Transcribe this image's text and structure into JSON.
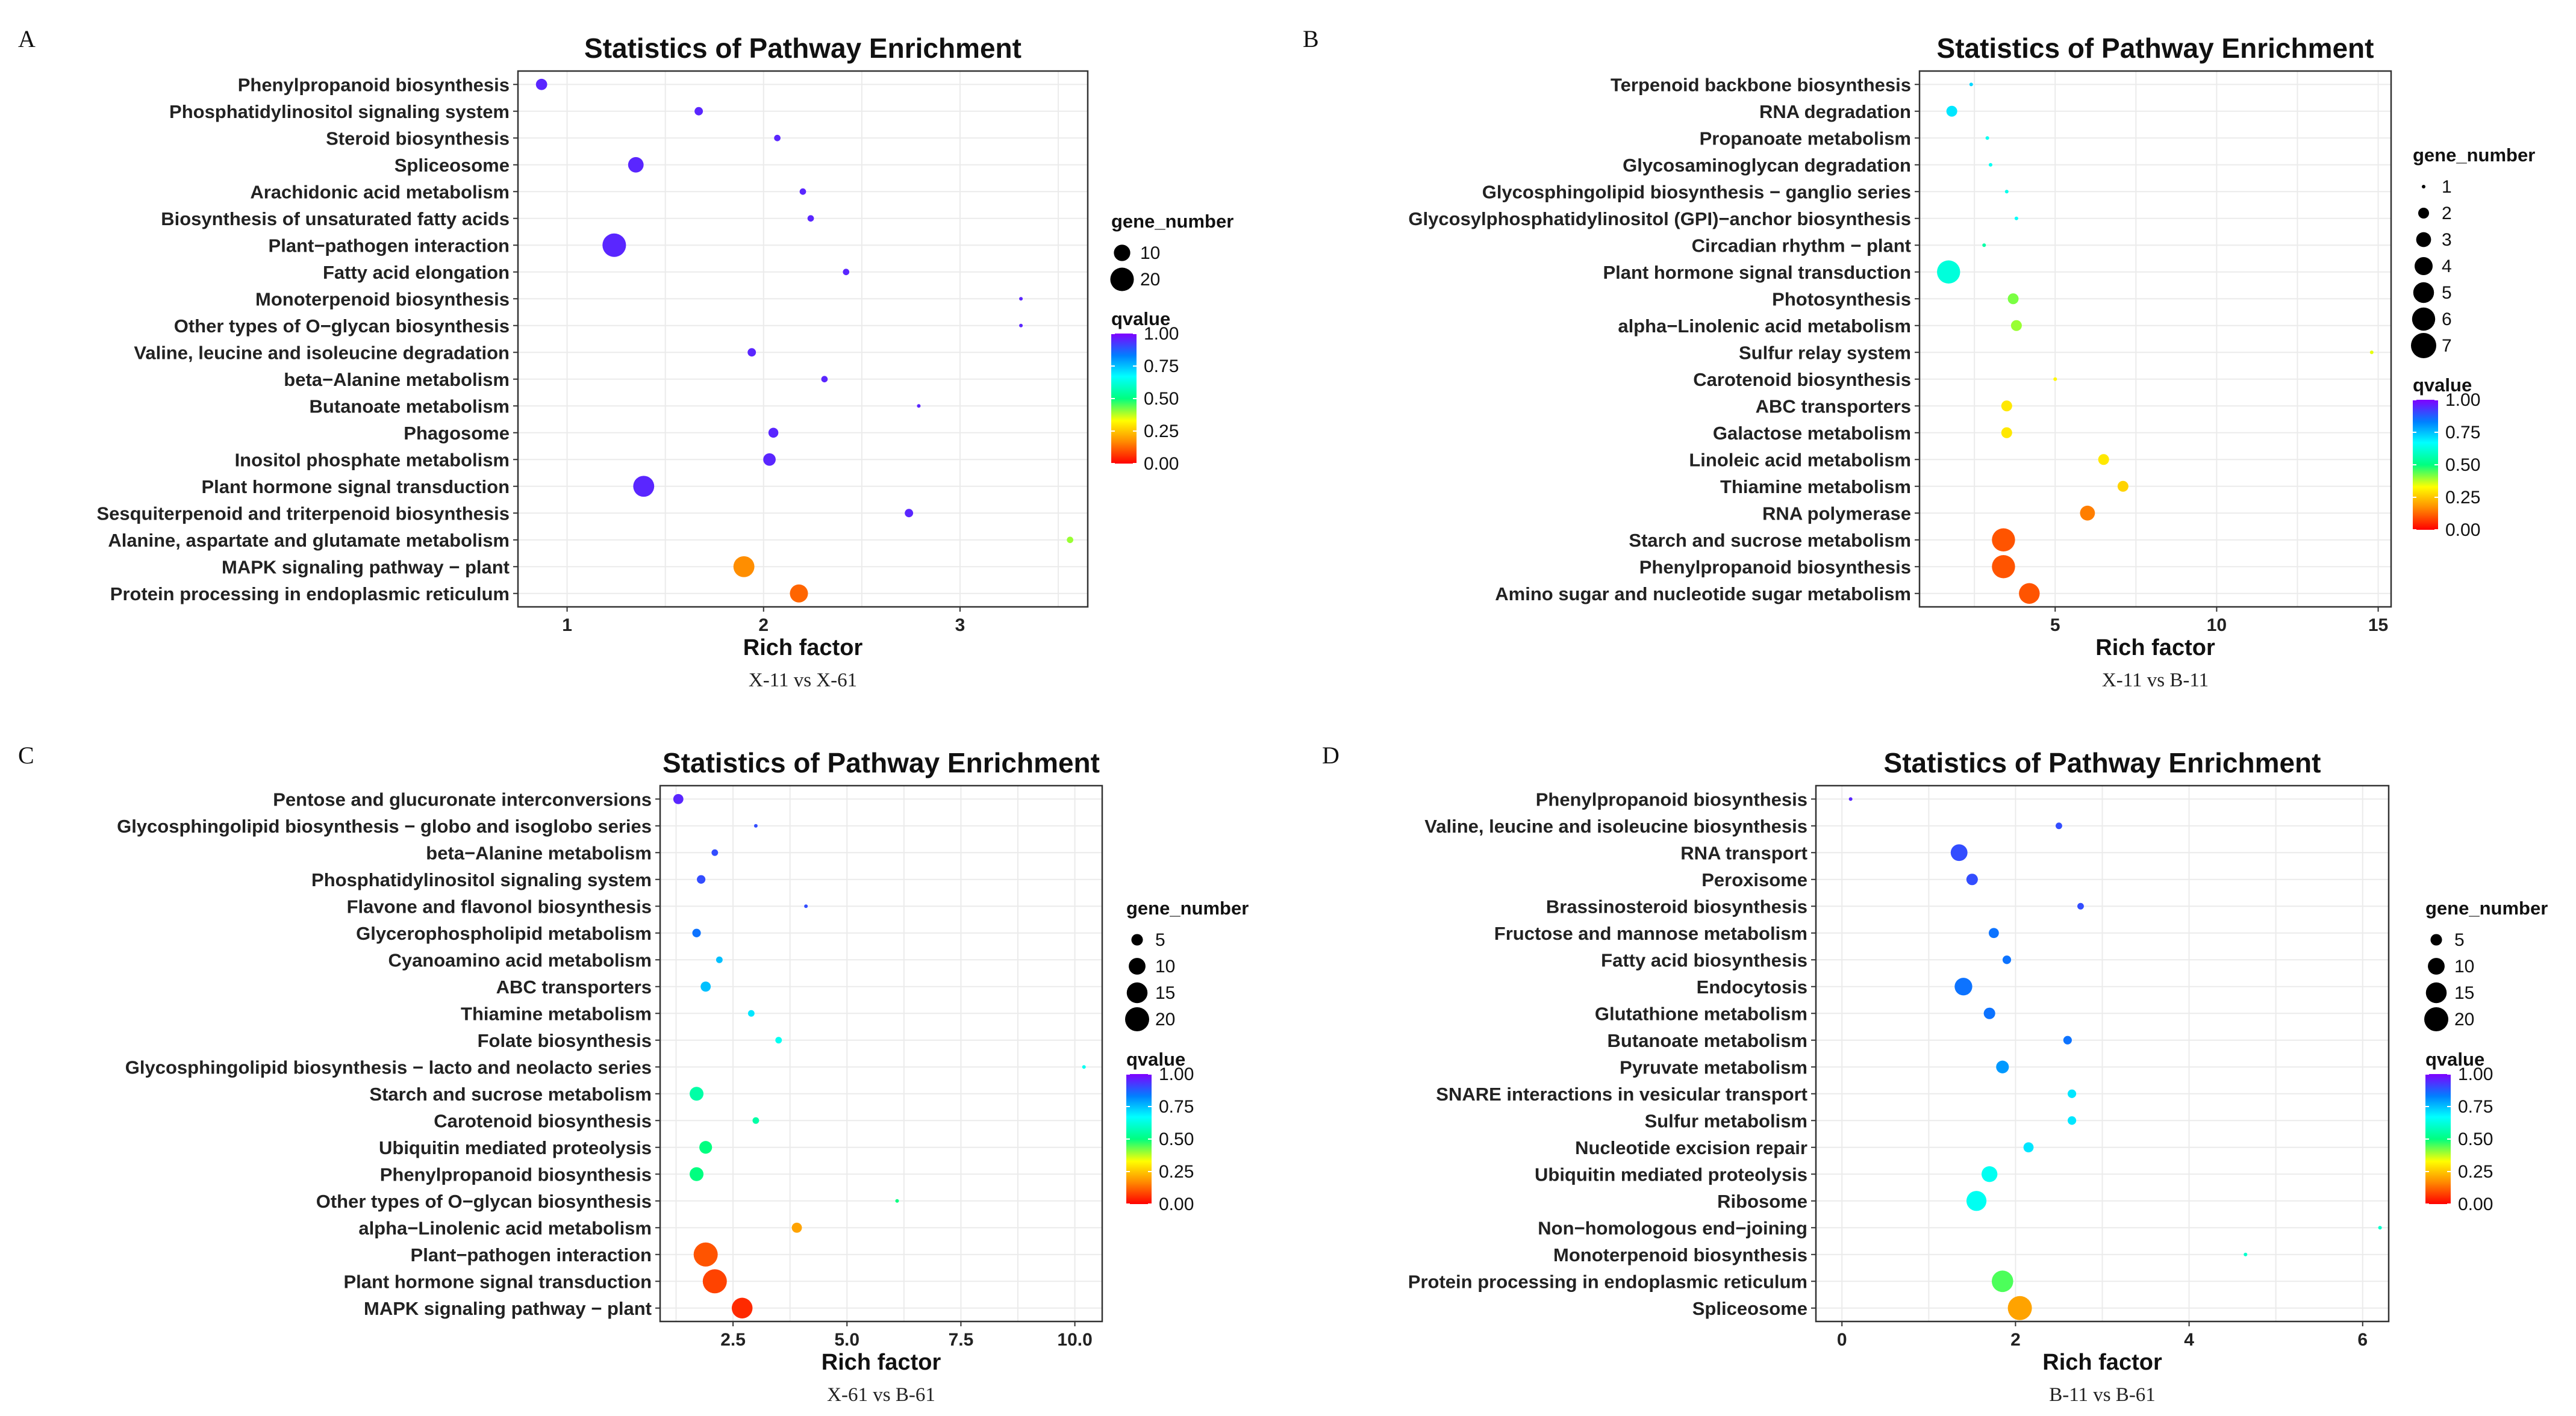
{
  "colors": {
    "gradient": [
      "#ff0000",
      "#ff8c00",
      "#ffff00",
      "#00ff80",
      "#00ffff",
      "#0080ff",
      "#8000ff"
    ],
    "grid": "#ebebeb",
    "border": "#333333"
  },
  "chart_data": [
    {
      "panel": "A",
      "type": "scatter",
      "title": "Statistics of Pathway Enrichment",
      "xlabel": "Rich factor",
      "caption": "X-11 vs X-61",
      "xlim": [
        0.75,
        3.65
      ],
      "xticks": [
        1,
        2,
        3
      ],
      "xtick_labels": [
        "1",
        "2",
        "3"
      ],
      "size_legend_title": "gene_number",
      "size_range": [
        1,
        23
      ],
      "size_breaks": [
        10,
        20
      ],
      "color_legend_title": "qvalue",
      "color_breaks": [
        "1.00",
        "0.75",
        "0.50",
        "0.25",
        "0.00"
      ],
      "categories": [
        "Phenylpropanoid biosynthesis",
        "Phosphatidylinositol signaling system",
        "Steroid biosynthesis",
        "Spliceosome",
        "Arachidonic acid metabolism",
        "Biosynthesis of unsaturated fatty acids",
        "Plant−pathogen interaction",
        "Fatty acid elongation",
        "Monoterpenoid biosynthesis",
        "Other types of O−glycan biosynthesis",
        "Valine, leucine and isoleucine degradation",
        "beta−Alanine metabolism",
        "Butanoate metabolism",
        "Phagosome",
        "Inositol phosphate metabolism",
        "Plant hormone signal transduction",
        "Sesquiterpenoid and triterpenoid biosynthesis",
        "Alanine, aspartate and glutamate metabolism",
        "MAPK signaling pathway − plant",
        "Protein processing in endoplasmic reticulum"
      ],
      "rich_factor": [
        0.87,
        1.67,
        2.07,
        1.35,
        2.2,
        2.24,
        1.24,
        2.42,
        3.31,
        3.31,
        1.94,
        2.31,
        2.79,
        2.05,
        2.03,
        1.39,
        2.74,
        3.56,
        1.9,
        2.18
      ],
      "gene_number": [
        5,
        3,
        2,
        9,
        2,
        2,
        20,
        2,
        1,
        1,
        3,
        2,
        1,
        4,
        6,
        16,
        3,
        2,
        16,
        12
      ],
      "qvalue": [
        0.95,
        0.95,
        0.95,
        0.95,
        0.95,
        0.95,
        0.95,
        0.95,
        0.95,
        0.95,
        0.95,
        0.95,
        0.95,
        0.95,
        0.95,
        0.95,
        0.95,
        0.4,
        0.17,
        0.12
      ]
    },
    {
      "panel": "B",
      "type": "scatter",
      "title": "Statistics of Pathway Enrichment",
      "xlabel": "Rich factor",
      "caption": "X-11 vs B-11",
      "xlim": [
        0.8,
        15.4
      ],
      "xticks": [
        5,
        10,
        15
      ],
      "xtick_labels": [
        "5",
        "10",
        "15"
      ],
      "size_legend_title": "gene_number",
      "size_range": [
        1,
        7
      ],
      "size_breaks": [
        1,
        2,
        3,
        4,
        5,
        6,
        7
      ],
      "color_legend_title": "qvalue",
      "color_breaks": [
        "1.00",
        "0.75",
        "0.50",
        "0.25",
        "0.00"
      ],
      "categories": [
        "Terpenoid backbone biosynthesis",
        "RNA degradation",
        "Propanoate metabolism",
        "Glycosaminoglycan degradation",
        "Glycosphingolipid biosynthesis − ganglio series",
        "Glycosylphosphatidylinositol (GPI)−anchor biosynthesis",
        "Circadian rhythm − plant",
        "Plant hormone signal transduction",
        "Photosynthesis",
        "alpha−Linolenic acid metabolism",
        "Sulfur relay system",
        "Carotenoid biosynthesis",
        "ABC transporters",
        "Galactose metabolism",
        "Linoleic acid metabolism",
        "Thiamine metabolism",
        "RNA polymerase",
        "Starch and sucrose metabolism",
        "Phenylpropanoid biosynthesis",
        "Amino sugar and nucleotide sugar metabolism"
      ],
      "rich_factor": [
        2.4,
        1.8,
        2.9,
        3.0,
        3.5,
        3.8,
        2.8,
        1.7,
        3.7,
        3.8,
        14.8,
        5.0,
        3.5,
        3.5,
        6.5,
        7.1,
        6.0,
        3.4,
        3.4,
        4.2
      ],
      "gene_number": [
        1,
        2,
        1,
        1,
        1,
        1,
        1,
        6,
        2,
        2,
        1,
        1,
        2,
        2,
        2,
        2,
        3,
        6,
        6,
        5
      ],
      "qvalue": [
        0.72,
        0.7,
        0.65,
        0.65,
        0.64,
        0.66,
        0.55,
        0.62,
        0.42,
        0.4,
        0.35,
        0.32,
        0.3,
        0.3,
        0.3,
        0.27,
        0.15,
        0.1,
        0.1,
        0.1
      ]
    },
    {
      "panel": "C",
      "type": "scatter",
      "title": "Statistics of Pathway Enrichment",
      "xlabel": "Rich factor",
      "caption": "X-61 vs B-61",
      "xlim": [
        0.9,
        10.6
      ],
      "xticks": [
        2.5,
        5.0,
        7.5,
        10.0
      ],
      "xtick_labels": [
        "2.5",
        "5.0",
        "7.5",
        "10.0"
      ],
      "size_legend_title": "gene_number",
      "size_range": [
        1,
        22
      ],
      "size_breaks": [
        5,
        10,
        15,
        20
      ],
      "color_legend_title": "qvalue",
      "color_breaks": [
        "1.00",
        "0.75",
        "0.50",
        "0.25",
        "0.00"
      ],
      "categories": [
        "Pentose and glucuronate interconversions",
        "Glycosphingolipid biosynthesis − globo and isoglobo series",
        "beta−Alanine metabolism",
        "Phosphatidylinositol signaling system",
        "Flavone and flavonol biosynthesis",
        "Glycerophospholipid metabolism",
        "Cyanoamino acid metabolism",
        "ABC transporters",
        "Thiamine metabolism",
        "Folate biosynthesis",
        "Glycosphingolipid biosynthesis − lacto and neolacto series",
        "Starch and sucrose metabolism",
        "Carotenoid biosynthesis",
        "Ubiquitin mediated proteolysis",
        "Phenylpropanoid biosynthesis",
        "Other types of O−glycan biosynthesis",
        "alpha−Linolenic acid metabolism",
        "Plant−pathogen interaction",
        "Plant hormone signal transduction",
        "MAPK signaling pathway − plant"
      ],
      "rich_factor": [
        1.3,
        3.0,
        2.1,
        1.8,
        4.1,
        1.7,
        2.2,
        1.9,
        2.9,
        3.5,
        10.2,
        1.7,
        3.0,
        1.9,
        1.7,
        6.1,
        3.9,
        1.9,
        2.1,
        2.7
      ],
      "gene_number": [
        4,
        1,
        2,
        3,
        1,
        3,
        2,
        4,
        2,
        2,
        1,
        7,
        2,
        6,
        7,
        1,
        4,
        20,
        20,
        15
      ],
      "qvalue": [
        0.95,
        0.9,
        0.9,
        0.9,
        0.9,
        0.85,
        0.75,
        0.75,
        0.7,
        0.65,
        0.65,
        0.55,
        0.55,
        0.5,
        0.5,
        0.5,
        0.2,
        0.1,
        0.08,
        0.05
      ]
    },
    {
      "panel": "D",
      "type": "scatter",
      "title": "Statistics of Pathway Enrichment",
      "xlabel": "Rich factor",
      "caption": "B-11 vs B-61",
      "xlim": [
        -0.3,
        6.3
      ],
      "xticks": [
        0,
        2,
        4,
        6
      ],
      "xtick_labels": [
        "0",
        "2",
        "4",
        "6"
      ],
      "size_legend_title": "gene_number",
      "size_range": [
        1,
        22
      ],
      "size_breaks": [
        5,
        10,
        15,
        20
      ],
      "color_legend_title": "qvalue",
      "color_breaks": [
        "1.00",
        "0.75",
        "0.50",
        "0.25",
        "0.00"
      ],
      "categories": [
        "Phenylpropanoid biosynthesis",
        "Valine, leucine and isoleucine biosynthesis",
        "RNA transport",
        "Peroxisome",
        "Brassinosteroid biosynthesis",
        "Fructose and mannose metabolism",
        "Fatty acid biosynthesis",
        "Endocytosis",
        "Glutathione metabolism",
        "Butanoate metabolism",
        "Pyruvate metabolism",
        "SNARE interactions in vesicular transport",
        "Sulfur metabolism",
        "Nucleotide excision repair",
        "Ubiquitin mediated proteolysis",
        "Ribosome",
        "Non−homologous end−joining",
        "Monoterpenoid biosynthesis",
        "Protein processing in endoplasmic reticulum",
        "Spliceosome"
      ],
      "rich_factor": [
        0.1,
        2.5,
        1.35,
        1.5,
        2.75,
        1.75,
        1.9,
        1.4,
        1.7,
        2.6,
        1.85,
        2.65,
        2.65,
        2.15,
        1.7,
        1.55,
        6.2,
        4.65,
        1.85,
        2.05
      ],
      "gene_number": [
        1,
        2,
        10,
        5,
        2,
        4,
        3,
        11,
        5,
        3,
        6,
        3,
        3,
        4,
        9,
        14,
        1,
        1,
        16,
        20
      ],
      "qvalue": [
        0.95,
        0.9,
        0.9,
        0.9,
        0.9,
        0.85,
        0.85,
        0.85,
        0.85,
        0.85,
        0.8,
        0.7,
        0.7,
        0.7,
        0.65,
        0.65,
        0.6,
        0.6,
        0.45,
        0.2
      ]
    }
  ]
}
